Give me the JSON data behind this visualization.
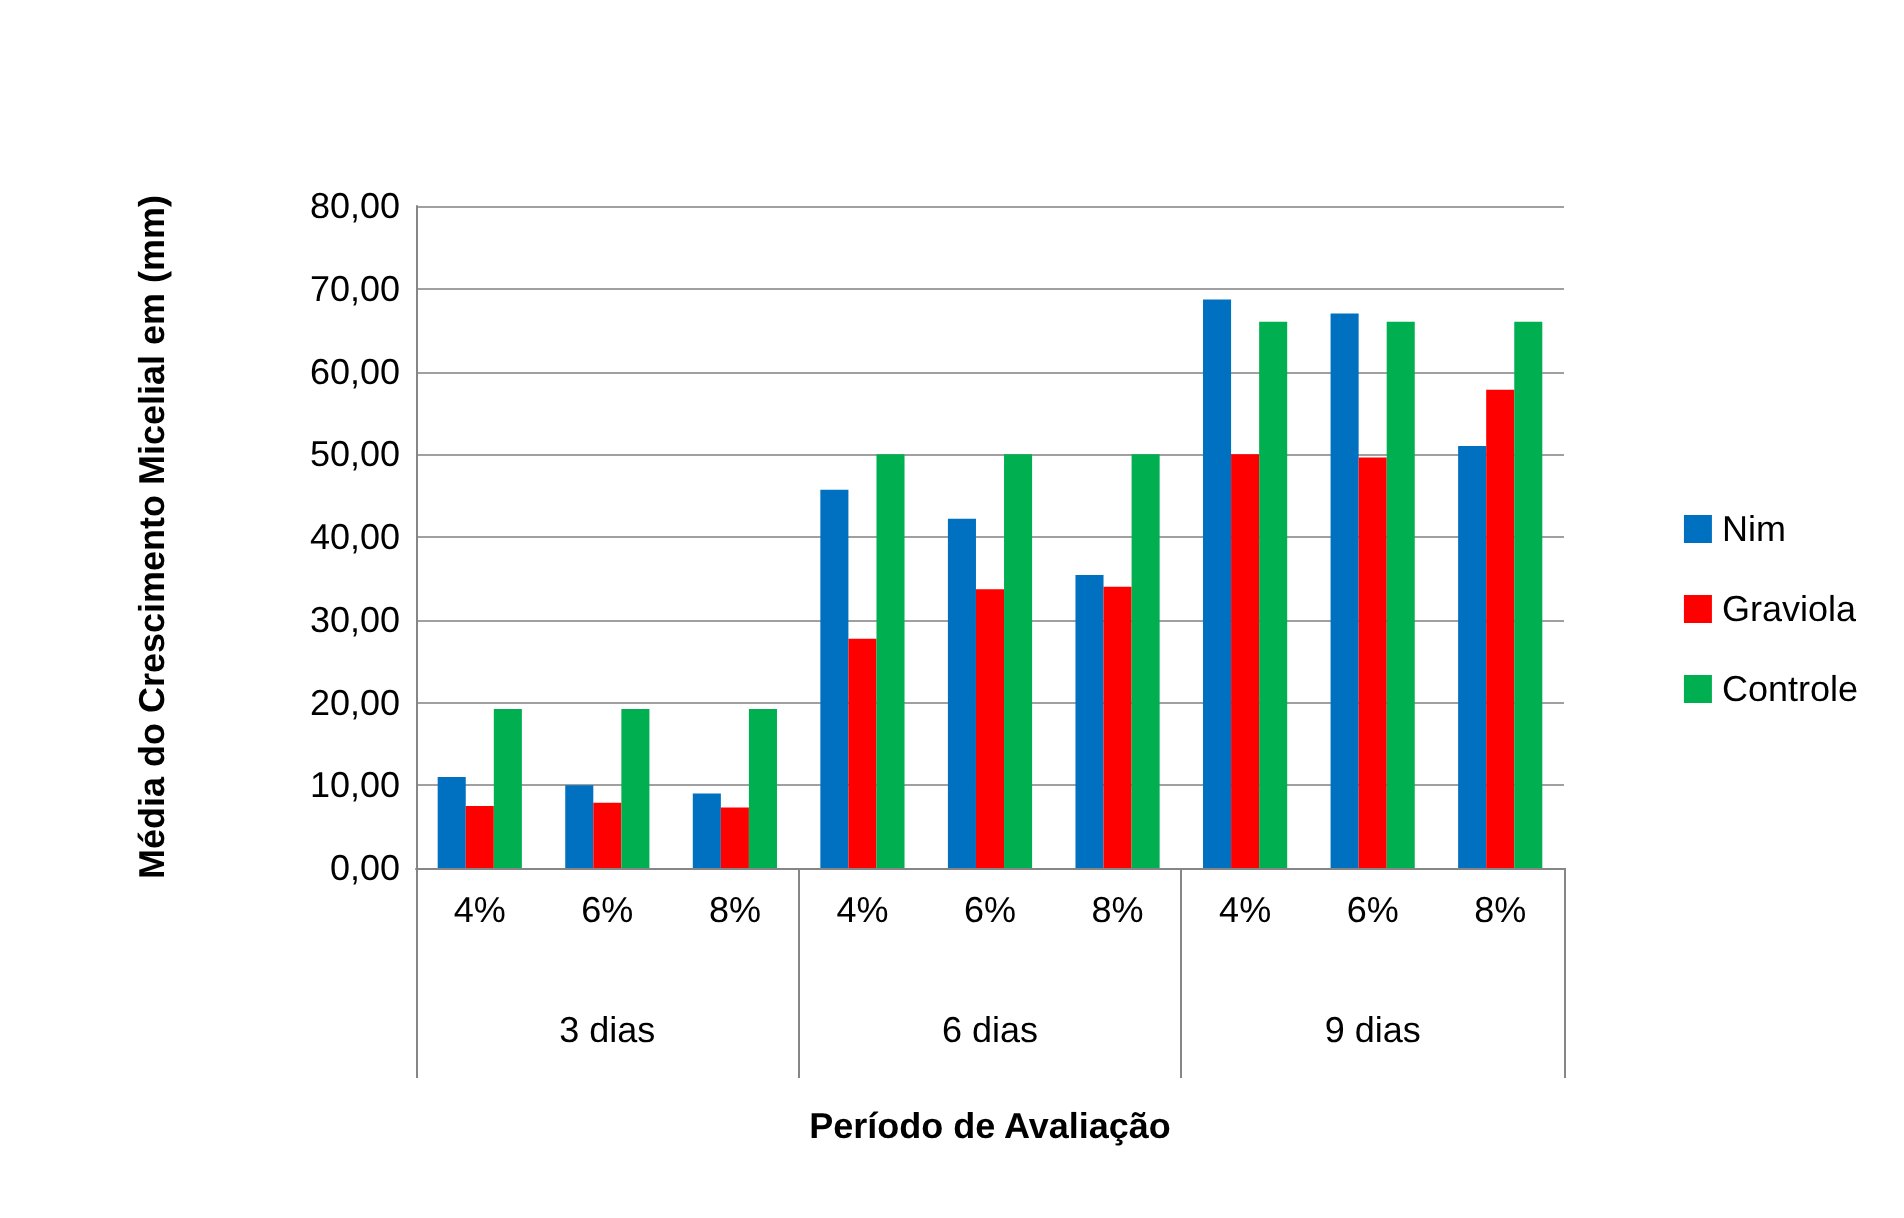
{
  "chart_data": {
    "type": "bar",
    "xlabel": "Período de Avaliação",
    "ylabel": "Média do Crescimento Micelial em (mm)",
    "categories": [
      "4%",
      "6%",
      "8%",
      "4%",
      "6%",
      "8%",
      "4%",
      "6%",
      "8%"
    ],
    "annotations": [
      "3 dias",
      "6 dias",
      "9 dias"
    ],
    "series": [
      {
        "name": "Nim",
        "color": "#0070c0",
        "values": [
          11,
          10,
          9,
          45.7,
          42.2,
          35.4,
          68.7,
          67,
          51
        ]
      },
      {
        "name": "Graviola",
        "color": "#ff0000",
        "values": [
          7.5,
          7.9,
          7.3,
          27.7,
          33.7,
          34,
          50,
          49.6,
          57.8
        ]
      },
      {
        "name": "Controle",
        "color": "#00b050",
        "values": [
          19.2,
          19.2,
          19.2,
          50,
          50,
          50,
          66,
          66,
          66
        ]
      }
    ],
    "ylim": [
      0,
      80
    ],
    "yticks": [
      {
        "value": 0,
        "label": "0,00"
      },
      {
        "value": 10,
        "label": "10,00"
      },
      {
        "value": 20,
        "label": "20,00"
      },
      {
        "value": 30,
        "label": "30,00"
      },
      {
        "value": 40,
        "label": "40,00"
      },
      {
        "value": 50,
        "label": "50,00"
      },
      {
        "value": 60,
        "label": "60,00"
      },
      {
        "value": 70,
        "label": "70,00"
      },
      {
        "value": 80,
        "label": "80,00"
      }
    ],
    "grid": "y",
    "legend": "right"
  }
}
